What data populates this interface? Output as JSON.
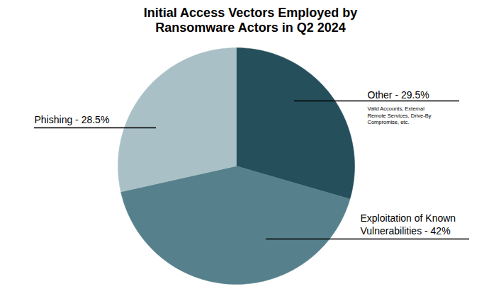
{
  "chart_data": {
    "type": "pie",
    "title": "Initial Access Vectors Employed by\nRansomware Actors in Q2 2024",
    "categories": [
      "Other",
      "Exploitation of Known Vulnerabilities",
      "Phishing"
    ],
    "values": [
      29.5,
      42,
      28.5
    ],
    "value_labels": [
      "Other - 29.5%",
      "Exploitation of Known\nVulnerabilities - 42%",
      "Phishing - 28.5%"
    ],
    "colors": [
      "#264f5c",
      "#56818c",
      "#a9c1c6"
    ],
    "annotations": [
      "Valid Accounts, External\nRemote Services, Drive-By\nCompromise, etc."
    ],
    "data_labels": true
  }
}
